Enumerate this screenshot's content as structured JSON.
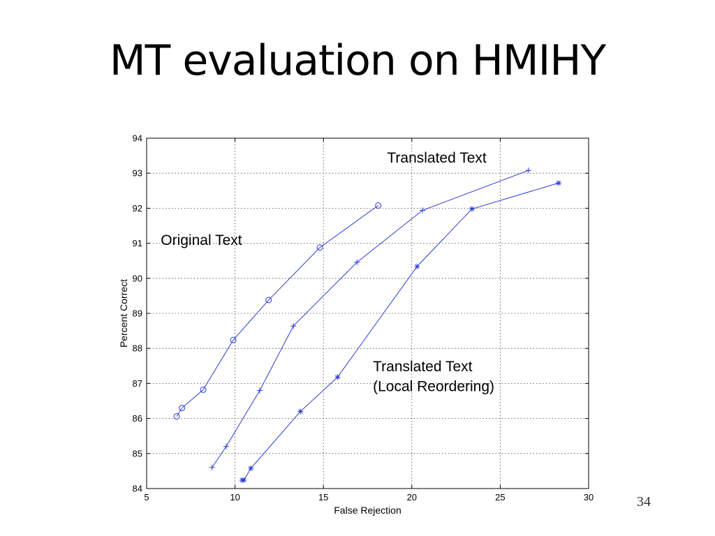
{
  "slide": {
    "title": "MT evaluation on HMIHY",
    "page_number": "34"
  },
  "chart_data": {
    "type": "line",
    "xlabel": "False Rejection",
    "ylabel": "Percent Correct",
    "xlim": [
      5,
      30
    ],
    "ylim": [
      84,
      94
    ],
    "x_ticks": [
      "5",
      "10",
      "15",
      "20",
      "25",
      "30"
    ],
    "y_ticks": [
      "84",
      "85",
      "86",
      "87",
      "88",
      "89",
      "90",
      "91",
      "92",
      "93",
      "94"
    ],
    "grid": true,
    "series_color": "#2a3bd8",
    "series": [
      {
        "marker": "circle",
        "x": [
          6.7,
          7.0,
          8.2,
          9.9,
          11.9,
          14.8,
          18.1
        ],
        "y": [
          86.06,
          86.3,
          86.82,
          88.24,
          89.38,
          90.88,
          92.08
        ]
      },
      {
        "marker": "plus",
        "x": [
          8.7,
          9.5,
          11.4,
          13.3,
          16.9,
          20.6,
          26.6
        ],
        "y": [
          84.6,
          85.2,
          86.8,
          88.64,
          90.46,
          91.94,
          93.08
        ]
      },
      {
        "marker": "star",
        "x": [
          10.4,
          10.5,
          10.9,
          13.7,
          15.8,
          20.3,
          23.4,
          28.3
        ],
        "y": [
          84.24,
          84.24,
          84.58,
          86.2,
          87.18,
          90.34,
          91.98,
          92.72
        ]
      }
    ],
    "annotations": [
      {
        "text": "Translated Text",
        "x": 18.6,
        "y": 93.3
      },
      {
        "text": "Original Text",
        "x": 5.8,
        "y": 90.95
      },
      {
        "text": "Translated Text",
        "x": 17.8,
        "y": 87.35
      },
      {
        "text": "(Local Reordering)",
        "x": 17.8,
        "y": 86.78
      }
    ]
  }
}
